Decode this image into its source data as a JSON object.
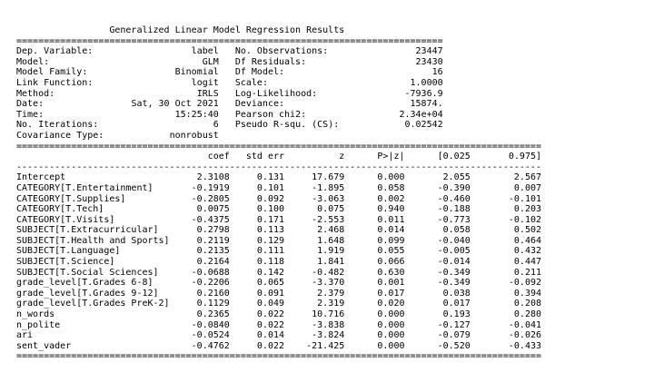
{
  "title": "Generalized Linear Model Regression Results",
  "summary": [
    {
      "left_label": "Dep. Variable:",
      "left_value": "label",
      "right_label": "No. Observations:",
      "right_value": "23447"
    },
    {
      "left_label": "Model:",
      "left_value": "GLM",
      "right_label": "Df Residuals:",
      "right_value": "23430"
    },
    {
      "left_label": "Model Family:",
      "left_value": "Binomial",
      "right_label": "Df Model:",
      "right_value": "16"
    },
    {
      "left_label": "Link Function:",
      "left_value": "logit",
      "right_label": "Scale:",
      "right_value": "1.0000"
    },
    {
      "left_label": "Method:",
      "left_value": "IRLS",
      "right_label": "Log-Likelihood:",
      "right_value": "-7936.9"
    },
    {
      "left_label": "Date:",
      "left_value": "Sat, 30 Oct 2021",
      "right_label": "Deviance:",
      "right_value": "15874."
    },
    {
      "left_label": "Time:",
      "left_value": "15:25:40",
      "right_label": "Pearson chi2:",
      "right_value": "2.34e+04"
    },
    {
      "left_label": "No. Iterations:",
      "left_value": "6",
      "right_label": "Pseudo R-squ. (CS):",
      "right_value": "0.02542"
    },
    {
      "left_label": "Covariance Type:",
      "left_value": "nonrobust",
      "right_label": "",
      "right_value": ""
    }
  ],
  "coef_table": {
    "headers": [
      "",
      "coef",
      "std err",
      "z",
      "P>|z|",
      "[0.025",
      "0.975]"
    ],
    "rows": [
      [
        "Intercept",
        "2.3108",
        "0.131",
        "17.679",
        "0.000",
        "2.055",
        "2.567"
      ],
      [
        "CATEGORY[T.Entertainment]",
        "-0.1919",
        "0.101",
        "-1.895",
        "0.058",
        "-0.390",
        "0.007"
      ],
      [
        "CATEGORY[T.Supplies]",
        "-0.2805",
        "0.092",
        "-3.063",
        "0.002",
        "-0.460",
        "-0.101"
      ],
      [
        "CATEGORY[T.Tech]",
        "0.0075",
        "0.100",
        "0.075",
        "0.940",
        "-0.188",
        "0.203"
      ],
      [
        "CATEGORY[T.Visits]",
        "-0.4375",
        "0.171",
        "-2.553",
        "0.011",
        "-0.773",
        "-0.102"
      ],
      [
        "SUBJECT[T.Extracurricular]",
        "0.2798",
        "0.113",
        "2.468",
        "0.014",
        "0.058",
        "0.502"
      ],
      [
        "SUBJECT[T.Health and Sports]",
        "0.2119",
        "0.129",
        "1.648",
        "0.099",
        "-0.040",
        "0.464"
      ],
      [
        "SUBJECT[T.Language]",
        "0.2135",
        "0.111",
        "1.919",
        "0.055",
        "-0.005",
        "0.432"
      ],
      [
        "SUBJECT[T.Science]",
        "0.2164",
        "0.118",
        "1.841",
        "0.066",
        "-0.014",
        "0.447"
      ],
      [
        "SUBJECT[T.Social Sciences]",
        "-0.0688",
        "0.142",
        "-0.482",
        "0.630",
        "-0.349",
        "0.211"
      ],
      [
        "grade_level[T.Grades 6-8]",
        "-0.2206",
        "0.065",
        "-3.370",
        "0.001",
        "-0.349",
        "-0.092"
      ],
      [
        "grade_level[T.Grades 9-12]",
        "0.2160",
        "0.091",
        "2.379",
        "0.017",
        "0.038",
        "0.394"
      ],
      [
        "grade_level[T.Grades PreK-2]",
        "0.1129",
        "0.049",
        "2.319",
        "0.020",
        "0.017",
        "0.208"
      ],
      [
        "n_words",
        "0.2365",
        "0.022",
        "10.716",
        "0.000",
        "0.193",
        "0.280"
      ],
      [
        "n_polite",
        "-0.0840",
        "0.022",
        "-3.838",
        "0.000",
        "-0.127",
        "-0.041"
      ],
      [
        "ari",
        "-0.0524",
        "0.014",
        "-3.824",
        "0.000",
        "-0.079",
        "-0.026"
      ],
      [
        "sent_vader",
        "-0.4762",
        "0.022",
        "-21.425",
        "0.000",
        "-0.520",
        "-0.433"
      ]
    ]
  }
}
